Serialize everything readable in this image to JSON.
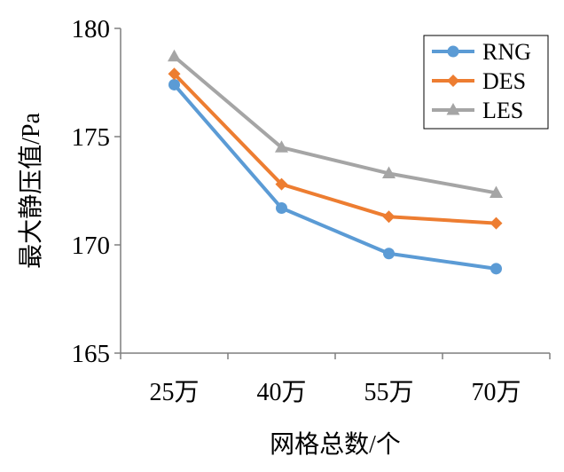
{
  "chart_data": {
    "type": "line",
    "categories": [
      "25万",
      "40万",
      "55万",
      "70万"
    ],
    "series": [
      {
        "name": "RNG",
        "values": [
          177.4,
          171.7,
          169.6,
          168.9
        ],
        "color": "#5b9bd5",
        "marker": "circle"
      },
      {
        "name": "DES",
        "values": [
          177.9,
          172.8,
          171.3,
          171.0
        ],
        "color": "#ed7d31",
        "marker": "diamond"
      },
      {
        "name": "LES",
        "values": [
          178.7,
          174.5,
          173.3,
          172.4
        ],
        "color": "#a5a5a5",
        "marker": "triangle"
      }
    ],
    "xlabel": "网格总数/个",
    "ylabel": "最大静压值/Pa",
    "ylim": [
      165,
      180
    ],
    "yticks": [
      165,
      170,
      175,
      180
    ],
    "grid": false,
    "legend": "top-right",
    "axis_color": "#7f7f7f"
  }
}
